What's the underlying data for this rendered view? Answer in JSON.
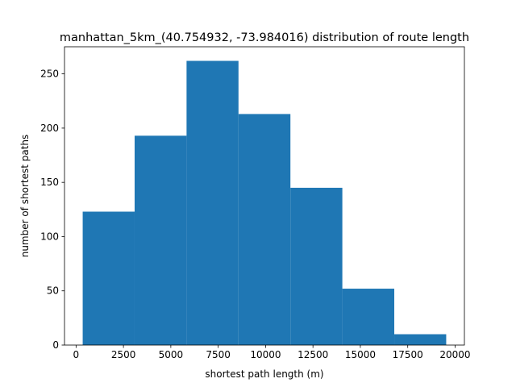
{
  "chart_data": {
    "type": "bar",
    "title": "manhattan_5km_(40.754932, -73.984016) distribution of route length",
    "xlabel": "shortest path length (m)",
    "ylabel": "number of shortest paths",
    "bin_edges": [
      350,
      3090,
      5830,
      8570,
      11310,
      14050,
      16790,
      19530
    ],
    "values": [
      123,
      193,
      262,
      213,
      145,
      52,
      10
    ],
    "xlim": [
      -610,
      20490
    ],
    "ylim": [
      0,
      275
    ],
    "xticks": [
      0,
      2500,
      5000,
      7500,
      10000,
      12500,
      15000,
      17500,
      20000
    ],
    "yticks": [
      0,
      50,
      100,
      150,
      200,
      250
    ],
    "bar_color": "#1f77b4",
    "grid": false,
    "legend": "none"
  }
}
